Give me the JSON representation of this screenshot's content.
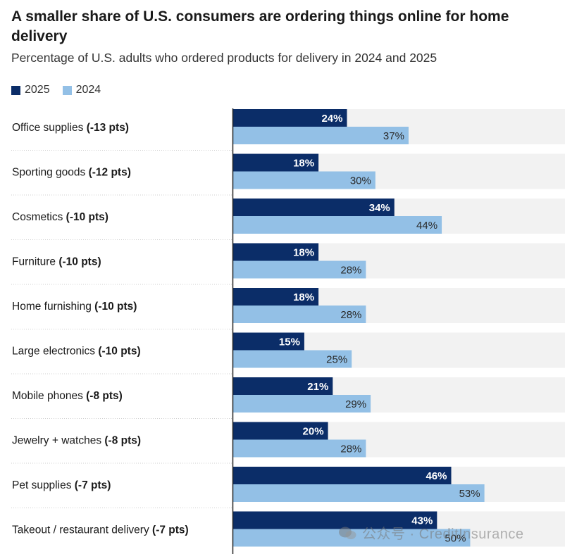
{
  "title": "A smaller share of U.S. consumers are ordering things online for home delivery",
  "subtitle": "Percentage of U.S. adults who ordered products for delivery in 2024 and 2025",
  "watermark": "公众号 · CreditInsurance",
  "colors": {
    "series_2025": "#0b2d68",
    "series_2024": "#93c0e6",
    "row_bg": "#f2f2f2"
  },
  "chart_data": {
    "type": "bar",
    "orientation": "horizontal",
    "legend_position": "top-left",
    "xlim": [
      0,
      70
    ],
    "categories": [
      "Office supplies",
      "Sporting goods",
      "Cosmetics",
      "Furniture",
      "Home furnishing",
      "Large electronics",
      "Mobile phones",
      "Jewelry + watches",
      "Pet supplies",
      "Takeout / restaurant delivery"
    ],
    "changes": [
      "(-13 pts)",
      "(-12 pts)",
      "(-10 pts)",
      "(-10 pts)",
      "(-10 pts)",
      "(-10 pts)",
      "(-8 pts)",
      "(-8 pts)",
      "(-7 pts)",
      "(-7 pts)"
    ],
    "series": [
      {
        "name": "2025",
        "values": [
          24,
          18,
          34,
          18,
          18,
          15,
          21,
          20,
          46,
          43
        ]
      },
      {
        "name": "2024",
        "values": [
          37,
          30,
          44,
          28,
          28,
          25,
          29,
          28,
          53,
          50
        ]
      }
    ]
  }
}
